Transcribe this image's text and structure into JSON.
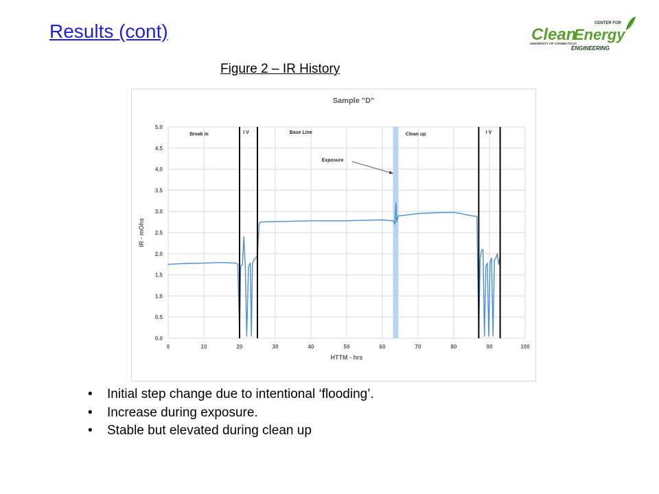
{
  "slide": {
    "title": "Results (cont)",
    "figure_caption": "Figure 2 – IR History"
  },
  "logo": {
    "top_text": "CENTER FOR",
    "word1": "Clean",
    "word2": "Energy",
    "sub_text": "UNIVERSITY OF CONNECTICUT",
    "bottom_text": "ENGINEERING",
    "colors": {
      "green": "#5aa02c",
      "dark": "#1a3d1a"
    }
  },
  "bullets": [
    "Initial step change due to intentional ‘flooding’.",
    "Increase during exposure.",
    "Stable but elevated during clean up"
  ],
  "chart_data": {
    "type": "line",
    "title": "Sample \"D\"",
    "xlabel": "HTTM - hrs",
    "ylabel": "IR - mOhs",
    "xlim": [
      0,
      100
    ],
    "ylim": [
      0,
      5
    ],
    "xticks": [
      "0",
      "10",
      "20",
      "30",
      "40",
      "50",
      "60",
      "70",
      "80",
      "90",
      "100"
    ],
    "yticks": [
      "0.0",
      "0.5",
      "1.0",
      "1.5",
      "2.0",
      "2.5",
      "3.0",
      "3.5",
      "4.0",
      "4.5",
      "5.0"
    ],
    "grid": true,
    "series_color": "#4a8fd4",
    "series": [
      {
        "x": [
          0,
          5,
          10,
          15,
          19,
          19.5,
          20,
          20.3,
          20.8,
          21.2,
          21.6,
          22.0,
          22.5,
          23.0,
          23.3,
          23.6,
          24.0,
          25.0,
          25.5,
          26,
          30,
          35,
          40,
          45,
          50,
          55,
          60,
          63,
          63.5,
          63.8,
          64.0,
          64.3,
          64.6,
          65,
          70,
          75,
          80,
          85,
          86.5,
          87,
          87.4,
          87.8,
          88.2,
          88.6,
          89.0,
          89.4,
          89.8,
          90.2,
          90.6,
          91.0,
          91.4,
          91.8,
          92.2,
          92.6,
          93
        ],
        "y": [
          1.75,
          1.77,
          1.78,
          1.79,
          1.78,
          1.75,
          0.05,
          1.7,
          1.75,
          2.4,
          1.72,
          0.05,
          1.7,
          1.78,
          0.05,
          1.76,
          1.85,
          1.95,
          2.72,
          2.75,
          2.76,
          2.77,
          2.78,
          2.78,
          2.78,
          2.79,
          2.8,
          2.78,
          2.7,
          3.2,
          2.75,
          2.85,
          2.9,
          2.9,
          2.95,
          2.97,
          2.98,
          2.9,
          2.88,
          0.1,
          1.9,
          2.08,
          2.1,
          0.05,
          1.7,
          1.78,
          0.05,
          1.8,
          1.9,
          0.05,
          1.85,
          1.9,
          2.0,
          1.75,
          1.95
        ]
      }
    ],
    "vertical_lines": [
      20,
      25,
      87,
      93
    ],
    "exposure_band": {
      "from": 63,
      "to": 64.5,
      "color": "#b9d3f0"
    },
    "annotations": [
      {
        "text": "Break in",
        "x": 6,
        "y": 4.8
      },
      {
        "text": "I V",
        "x": 21,
        "y": 4.84
      },
      {
        "text": "Base Line",
        "x": 34,
        "y": 4.84
      },
      {
        "text": "Clean up",
        "x": 66.5,
        "y": 4.8
      },
      {
        "text": "I V",
        "x": 89,
        "y": 4.84
      },
      {
        "text": "Exposure",
        "x": 43,
        "y": 4.18
      }
    ],
    "arrow": {
      "from": [
        51.5,
        4.18
      ],
      "to": [
        63,
        3.9
      ]
    }
  }
}
